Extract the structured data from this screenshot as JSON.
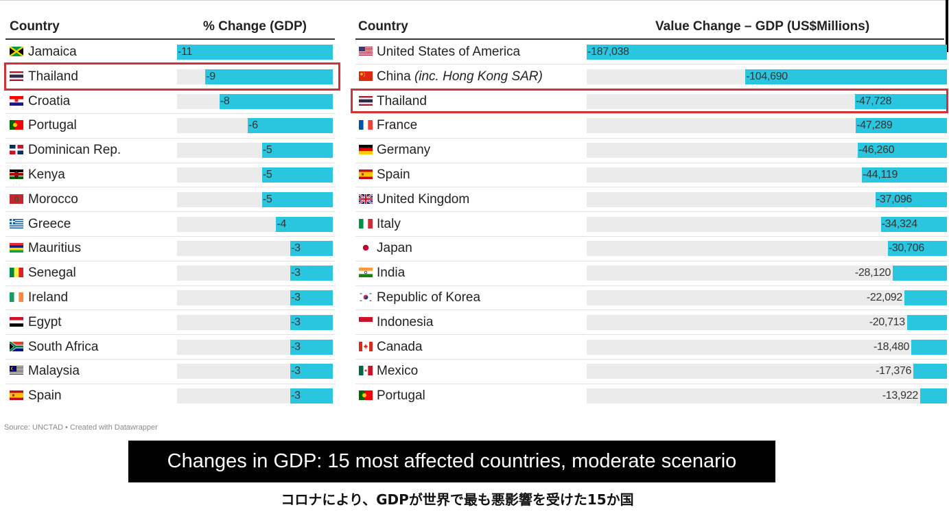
{
  "left_table": {
    "col_country": "Country",
    "col_value": "% Change (GDP)",
    "max_abs": 11,
    "rows": [
      {
        "country": "Jamaica",
        "flag": "jamaica-flag",
        "value": -11,
        "label": "-11"
      },
      {
        "country": "Thailand",
        "flag": "thailand-flag",
        "value": -9,
        "label": "-9",
        "highlight": true
      },
      {
        "country": "Croatia",
        "flag": "croatia-flag",
        "value": -8,
        "label": "-8"
      },
      {
        "country": "Portugal",
        "flag": "portugal-flag",
        "value": -6,
        "label": "-6"
      },
      {
        "country": "Dominican Rep.",
        "flag": "dominican-rep-flag",
        "value": -5,
        "label": "-5"
      },
      {
        "country": "Kenya",
        "flag": "kenya-flag",
        "value": -5,
        "label": "-5"
      },
      {
        "country": "Morocco",
        "flag": "morocco-flag",
        "value": -5,
        "label": "-5"
      },
      {
        "country": "Greece",
        "flag": "greece-flag",
        "value": -4,
        "label": "-4"
      },
      {
        "country": "Mauritius",
        "flag": "mauritius-flag",
        "value": -3,
        "label": "-3"
      },
      {
        "country": "Senegal",
        "flag": "senegal-flag",
        "value": -3,
        "label": "-3"
      },
      {
        "country": "Ireland",
        "flag": "ireland-flag",
        "value": -3,
        "label": "-3"
      },
      {
        "country": "Egypt",
        "flag": "egypt-flag",
        "value": -3,
        "label": "-3"
      },
      {
        "country": "South Africa",
        "flag": "south-africa-flag",
        "value": -3,
        "label": "-3"
      },
      {
        "country": "Malaysia",
        "flag": "malaysia-flag",
        "value": -3,
        "label": "-3"
      },
      {
        "country": "Spain",
        "flag": "spain-flag",
        "value": -3,
        "label": "-3"
      }
    ]
  },
  "right_table": {
    "col_country": "Country",
    "col_value": "Value Change – GDP (US$Millions)",
    "max_abs": 187038,
    "rows": [
      {
        "country": "United States of America",
        "flag": "usa-flag",
        "value": -187038,
        "label": "-187,038"
      },
      {
        "country": "China",
        "country_note": "(inc. Hong Kong SAR)",
        "flag": "china-flag",
        "value": -104690,
        "label": "-104,690"
      },
      {
        "country": "Thailand",
        "flag": "thailand-flag",
        "value": -47728,
        "label": "-47,728",
        "highlight": true
      },
      {
        "country": "France",
        "flag": "france-flag",
        "value": -47289,
        "label": "-47,289"
      },
      {
        "country": "Germany",
        "flag": "germany-flag",
        "value": -46260,
        "label": "-46,260"
      },
      {
        "country": "Spain",
        "flag": "spain-flag",
        "value": -44119,
        "label": "-44,119"
      },
      {
        "country": "United Kingdom",
        "flag": "uk-flag",
        "value": -37096,
        "label": "-37,096"
      },
      {
        "country": "Italy",
        "flag": "italy-flag",
        "value": -34324,
        "label": "-34,324"
      },
      {
        "country": "Japan",
        "flag": "japan-flag",
        "value": -30706,
        "label": "-30,706"
      },
      {
        "country": "India",
        "flag": "india-flag",
        "value": -28120,
        "label": "-28,120"
      },
      {
        "country": "Republic of Korea",
        "flag": "korea-flag",
        "value": -22092,
        "label": "-22,092"
      },
      {
        "country": "Indonesia",
        "flag": "indonesia-flag",
        "value": -20713,
        "label": "-20,713"
      },
      {
        "country": "Canada",
        "flag": "canada-flag",
        "value": -18480,
        "label": "-18,480"
      },
      {
        "country": "Mexico",
        "flag": "mexico-flag",
        "value": -17376,
        "label": "-17,376"
      },
      {
        "country": "Portugal",
        "flag": "portugal-flag",
        "value": -13922,
        "label": "-13,922"
      }
    ]
  },
  "source": "Source: UNCTAD • Created with Datawrapper",
  "caption": "Changes in GDP: 15 most affected countries, moderate scenario",
  "caption_japanese": "コロナにより、GDPが世界で最も悪影響を受けた15か国",
  "colors": {
    "bar": "#2ac5de",
    "track": "#ebebeb",
    "highlight": "#d13237"
  },
  "chart_data": [
    {
      "type": "bar",
      "xlabel": "% Change (GDP)",
      "categories": [
        "Jamaica",
        "Thailand",
        "Croatia",
        "Portugal",
        "Dominican Rep.",
        "Kenya",
        "Morocco",
        "Greece",
        "Mauritius",
        "Senegal",
        "Ireland",
        "Egypt",
        "South Africa",
        "Malaysia",
        "Spain"
      ],
      "values": [
        -11,
        -9,
        -8,
        -6,
        -5,
        -5,
        -5,
        -4,
        -3,
        -3,
        -3,
        -3,
        -3,
        -3,
        -3
      ]
    },
    {
      "type": "bar",
      "xlabel": "Value Change – GDP (US$Millions)",
      "categories": [
        "United States of America",
        "China (inc. Hong Kong SAR)",
        "Thailand",
        "France",
        "Germany",
        "Spain",
        "United Kingdom",
        "Italy",
        "Japan",
        "India",
        "Republic of Korea",
        "Indonesia",
        "Canada",
        "Mexico",
        "Portugal"
      ],
      "values": [
        -187038,
        -104690,
        -47728,
        -47289,
        -46260,
        -44119,
        -37096,
        -34324,
        -30706,
        -28120,
        -22092,
        -20713,
        -18480,
        -17376,
        -13922
      ]
    }
  ]
}
